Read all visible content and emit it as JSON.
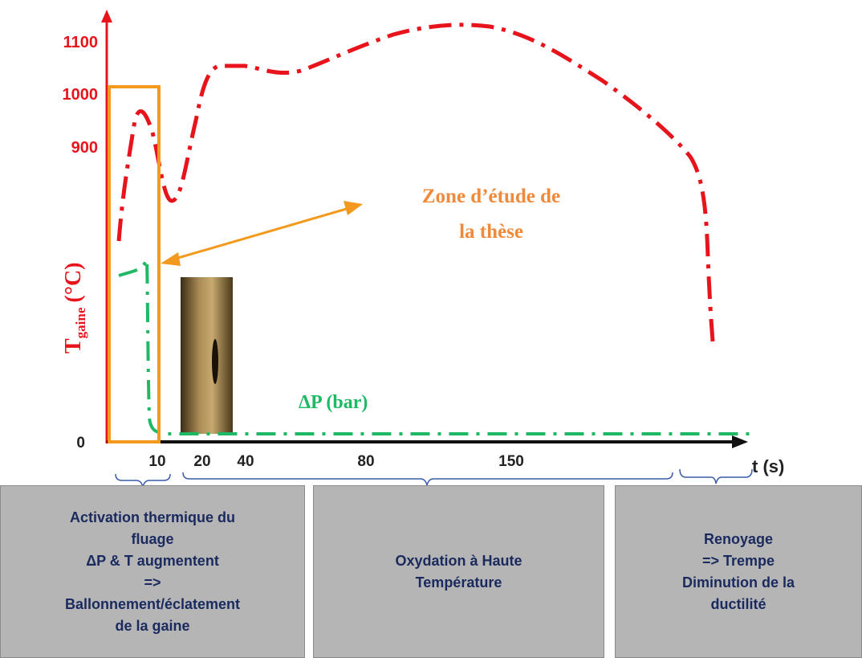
{
  "y_axis": {
    "label": "T",
    "label_subscript": "gaine",
    "label_unit": "(°C)",
    "ticks": [
      "1100",
      "1000",
      "900",
      "0"
    ]
  },
  "x_axis": {
    "ticks": [
      "10",
      "20",
      "40",
      "80",
      "150"
    ],
    "label": "t (s)"
  },
  "annotation": {
    "lines": [
      "Zone d’étude de",
      "la thèse"
    ]
  },
  "pressure_label": "ΔP (bar)",
  "phases": [
    {
      "lines": [
        "Activation thermique du",
        "fluage",
        "ΔP & T augmentent",
        "=>",
        "Ballonnement/éclatement",
        "de la gaine"
      ]
    },
    {
      "lines": [
        "Oxydation à Haute",
        "Température"
      ]
    },
    {
      "lines": [
        "Renoyage",
        "=> Trempe",
        "Diminution de la",
        "ductilité"
      ]
    }
  ]
}
